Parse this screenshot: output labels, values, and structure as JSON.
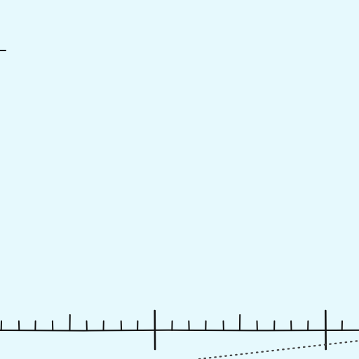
{
  "canvas": {
    "background_color": "#e6f9fd",
    "ink_color": "#111111",
    "dotted_color": "#555555"
  },
  "ruler": {
    "major_ticks": 3,
    "minor_divisions_per_major": 10,
    "labels": []
  }
}
